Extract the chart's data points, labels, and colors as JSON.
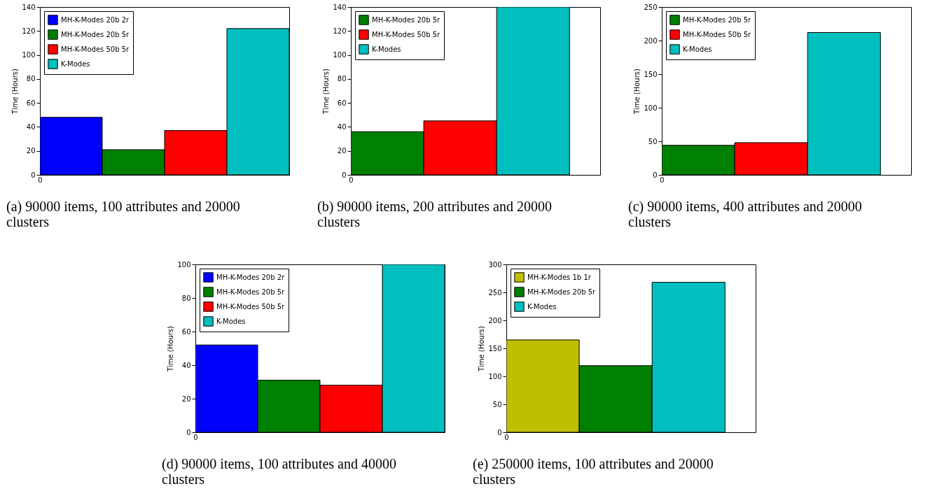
{
  "chart_data": [
    {
      "type": "bar",
      "ylabel": "Time (Hours)",
      "legend": "top left",
      "annotations": [
        "0",
        "(a) 90000 items, 100 attributes and 20000 clusters"
      ],
      "categories": [
        null,
        null,
        null,
        null
      ],
      "ylim": [
        0,
        140
      ],
      "yticks": [
        0,
        20,
        40,
        60,
        80,
        100,
        120,
        140
      ],
      "series": [
        {
          "name": "MH-K-Modes 20b 2r",
          "color": "#0000ff",
          "values": [
            48,
            null,
            null,
            null
          ]
        },
        {
          "name": "MH-K-Modes 20b 5r",
          "color": "#008000",
          "values": [
            null,
            21,
            null,
            null
          ]
        },
        {
          "name": "MH-K-Modes 50b 5r",
          "color": "#ff0000",
          "values": [
            null,
            null,
            37,
            null
          ]
        },
        {
          "name": "K-Modes",
          "color": "#00bfbf",
          "values": [
            null,
            null,
            null,
            122
          ]
        }
      ]
    },
    {
      "type": "bar",
      "ylabel": "Time (Hours)",
      "legend": "top left",
      "annotations": [
        "0",
        "(b) 90000 items, 200 attributes and 20000 clusters"
      ],
      "categories": [
        null,
        null,
        null
      ],
      "ylim": [
        0,
        140
      ],
      "yticks": [
        0,
        20,
        40,
        60,
        80,
        100,
        120,
        140
      ],
      "series": [
        {
          "name": "MH-K-Modes 20b 5r",
          "color": "#008000",
          "values": [
            36,
            null,
            null
          ]
        },
        {
          "name": "MH-K-Modes 50b 5r",
          "color": "#ff0000",
          "values": [
            null,
            45,
            null
          ]
        },
        {
          "name": "K-Modes",
          "color": "#00bfbf",
          "values": [
            null,
            null,
            140
          ]
        }
      ]
    },
    {
      "type": "bar",
      "ylabel": "Time (Hours)",
      "legend": "top left",
      "annotations": [
        "0",
        "(c) 90000 items, 400 attributes and 20000 clusters"
      ],
      "categories": [
        null,
        null,
        null
      ],
      "ylim": [
        0,
        250
      ],
      "yticks": [
        0,
        50,
        100,
        150,
        200,
        250
      ],
      "series": [
        {
          "name": "MH-K-Modes 20b 5r",
          "color": "#008000",
          "values": [
            44,
            null,
            null
          ]
        },
        {
          "name": "MH-K-Modes 50b 5r",
          "color": "#ff0000",
          "values": [
            null,
            48,
            null
          ]
        },
        {
          "name": "K-Modes",
          "color": "#00bfbf",
          "values": [
            null,
            null,
            212
          ]
        }
      ]
    },
    {
      "type": "bar",
      "ylabel": "Time (Hours)",
      "legend": "top left",
      "annotations": [
        "0",
        "(d) 90000 items, 100 attributes and 40000 clusters"
      ],
      "categories": [
        null,
        null,
        null,
        null
      ],
      "ylim": [
        0,
        100
      ],
      "yticks": [
        0,
        20,
        40,
        60,
        80,
        100
      ],
      "series": [
        {
          "name": "MH-K-Modes 20b 2r",
          "color": "#0000ff",
          "values": [
            52,
            null,
            null,
            null
          ]
        },
        {
          "name": "MH-K-Modes 20b 5r",
          "color": "#008000",
          "values": [
            null,
            31,
            null,
            null
          ]
        },
        {
          "name": "MH-K-Modes 50b 5r",
          "color": "#ff0000",
          "values": [
            null,
            null,
            28,
            null
          ]
        },
        {
          "name": "K-Modes",
          "color": "#00bfbf",
          "values": [
            null,
            null,
            null,
            100
          ]
        }
      ]
    },
    {
      "type": "bar",
      "ylabel": "Time (Hours)",
      "legend": "top left",
      "annotations": [
        "0",
        "(e) 250000 items, 100 attributes and 20000 clusters"
      ],
      "categories": [
        null,
        null,
        null
      ],
      "ylim": [
        0,
        300
      ],
      "yticks": [
        0,
        50,
        100,
        150,
        200,
        250,
        300
      ],
      "series": [
        {
          "name": "MH-K-Modes 1b 1r",
          "color": "#bfbf00",
          "values": [
            165,
            null,
            null
          ]
        },
        {
          "name": "MH-K-Modes 20b 5r",
          "color": "#008000",
          "values": [
            null,
            119,
            null
          ]
        },
        {
          "name": "K-Modes",
          "color": "#00bfbf",
          "values": [
            null,
            null,
            268
          ]
        }
      ]
    }
  ]
}
